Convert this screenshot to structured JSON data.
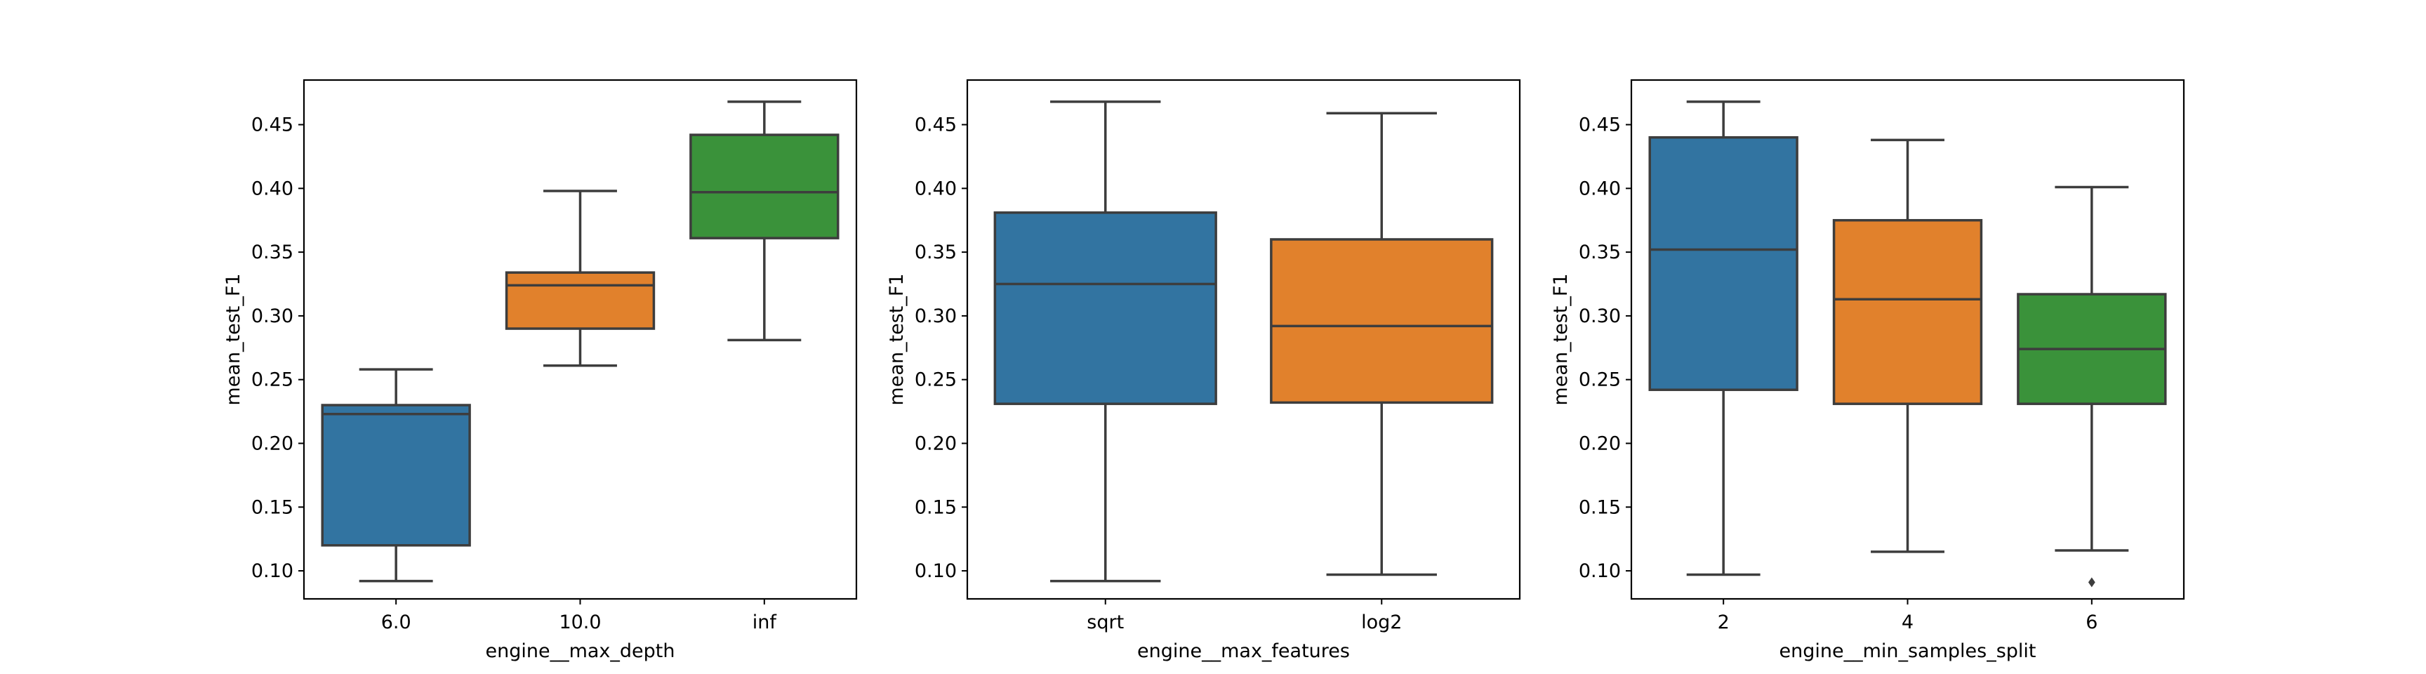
{
  "colors": {
    "blue": "#3274a1",
    "orange": "#e1812c",
    "green": "#3a923a",
    "box_edge": "#3d3d3d",
    "frame": "#000000",
    "background": "#ffffff"
  },
  "chart_data": [
    {
      "type": "box",
      "title": "",
      "xlabel": "engine__max_depth",
      "ylabel": "mean_test_F1",
      "ylim": [
        0.078,
        0.485
      ],
      "yticks": [
        0.1,
        0.15,
        0.2,
        0.25,
        0.3,
        0.35,
        0.4,
        0.45
      ],
      "ytick_labels": [
        "0.10",
        "0.15",
        "0.20",
        "0.25",
        "0.30",
        "0.35",
        "0.40",
        "0.45"
      ],
      "categories": [
        "6.0",
        "10.0",
        "inf"
      ],
      "boxes": [
        {
          "category": "6.0",
          "color": "#3274a1",
          "whisker_low": 0.092,
          "q1": 0.12,
          "median": 0.223,
          "q3": 0.23,
          "whisker_high": 0.258,
          "fliers": []
        },
        {
          "category": "10.0",
          "color": "#e1812c",
          "whisker_low": 0.261,
          "q1": 0.29,
          "median": 0.324,
          "q3": 0.334,
          "whisker_high": 0.398,
          "fliers": []
        },
        {
          "category": "inf",
          "color": "#3a923a",
          "whisker_low": 0.281,
          "q1": 0.361,
          "median": 0.397,
          "q3": 0.442,
          "whisker_high": 0.468,
          "fliers": []
        }
      ],
      "grid": false,
      "legend": "none"
    },
    {
      "type": "box",
      "title": "",
      "xlabel": "engine__max_features",
      "ylabel": "mean_test_F1",
      "ylim": [
        0.078,
        0.485
      ],
      "yticks": [
        0.1,
        0.15,
        0.2,
        0.25,
        0.3,
        0.35,
        0.4,
        0.45
      ],
      "ytick_labels": [
        "0.10",
        "0.15",
        "0.20",
        "0.25",
        "0.30",
        "0.35",
        "0.40",
        "0.45"
      ],
      "categories": [
        "sqrt",
        "log2"
      ],
      "boxes": [
        {
          "category": "sqrt",
          "color": "#3274a1",
          "whisker_low": 0.092,
          "q1": 0.231,
          "median": 0.325,
          "q3": 0.381,
          "whisker_high": 0.468,
          "fliers": []
        },
        {
          "category": "log2",
          "color": "#e1812c",
          "whisker_low": 0.097,
          "q1": 0.232,
          "median": 0.292,
          "q3": 0.36,
          "whisker_high": 0.459,
          "fliers": []
        }
      ],
      "grid": false,
      "legend": "none"
    },
    {
      "type": "box",
      "title": "",
      "xlabel": "engine__min_samples_split",
      "ylabel": "mean_test_F1",
      "ylim": [
        0.078,
        0.485
      ],
      "yticks": [
        0.1,
        0.15,
        0.2,
        0.25,
        0.3,
        0.35,
        0.4,
        0.45
      ],
      "ytick_labels": [
        "0.10",
        "0.15",
        "0.20",
        "0.25",
        "0.30",
        "0.35",
        "0.40",
        "0.45"
      ],
      "categories": [
        "2",
        "4",
        "6"
      ],
      "boxes": [
        {
          "category": "2",
          "color": "#3274a1",
          "whisker_low": 0.097,
          "q1": 0.242,
          "median": 0.352,
          "q3": 0.44,
          "whisker_high": 0.468,
          "fliers": []
        },
        {
          "category": "4",
          "color": "#e1812c",
          "whisker_low": 0.115,
          "q1": 0.231,
          "median": 0.313,
          "q3": 0.375,
          "whisker_high": 0.438,
          "fliers": []
        },
        {
          "category": "6",
          "color": "#3a923a",
          "whisker_low": 0.116,
          "q1": 0.231,
          "median": 0.274,
          "q3": 0.317,
          "whisker_high": 0.401,
          "fliers": [
            0.091
          ]
        }
      ],
      "grid": false,
      "legend": "none"
    }
  ]
}
